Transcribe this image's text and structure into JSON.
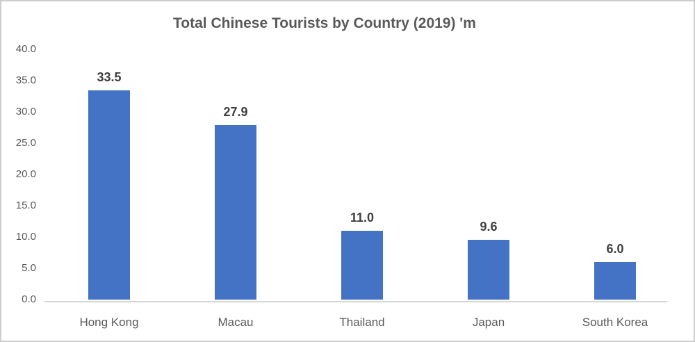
{
  "figure": {
    "background": "#ffffff",
    "border_color": "#cdcdcd"
  },
  "chart_data": {
    "type": "bar",
    "title": "Total Chinese Tourists by Country (2019) 'm",
    "categories": [
      "Hong Kong",
      "Macau",
      "Thailand",
      "Japan",
      "South Korea"
    ],
    "values": [
      33.5,
      27.9,
      11.0,
      9.6,
      6.0
    ],
    "data_labels": [
      "33.5",
      "27.9",
      "11.0",
      "9.6",
      "6.0"
    ],
    "xlabel": "",
    "ylabel": "",
    "ylim": [
      0,
      40
    ],
    "ytick_step": 5,
    "ytick_labels": [
      "0.0",
      "5.0",
      "10.0",
      "15.0",
      "20.0",
      "25.0",
      "30.0",
      "35.0",
      "40.0"
    ],
    "grid": false,
    "legend": false,
    "bar_color": "#4472C4",
    "title_color": "#595959",
    "axis_label_color": "#595959",
    "value_label_color": "#3f3f3f",
    "axis_line_color": "#d6d6d6"
  }
}
